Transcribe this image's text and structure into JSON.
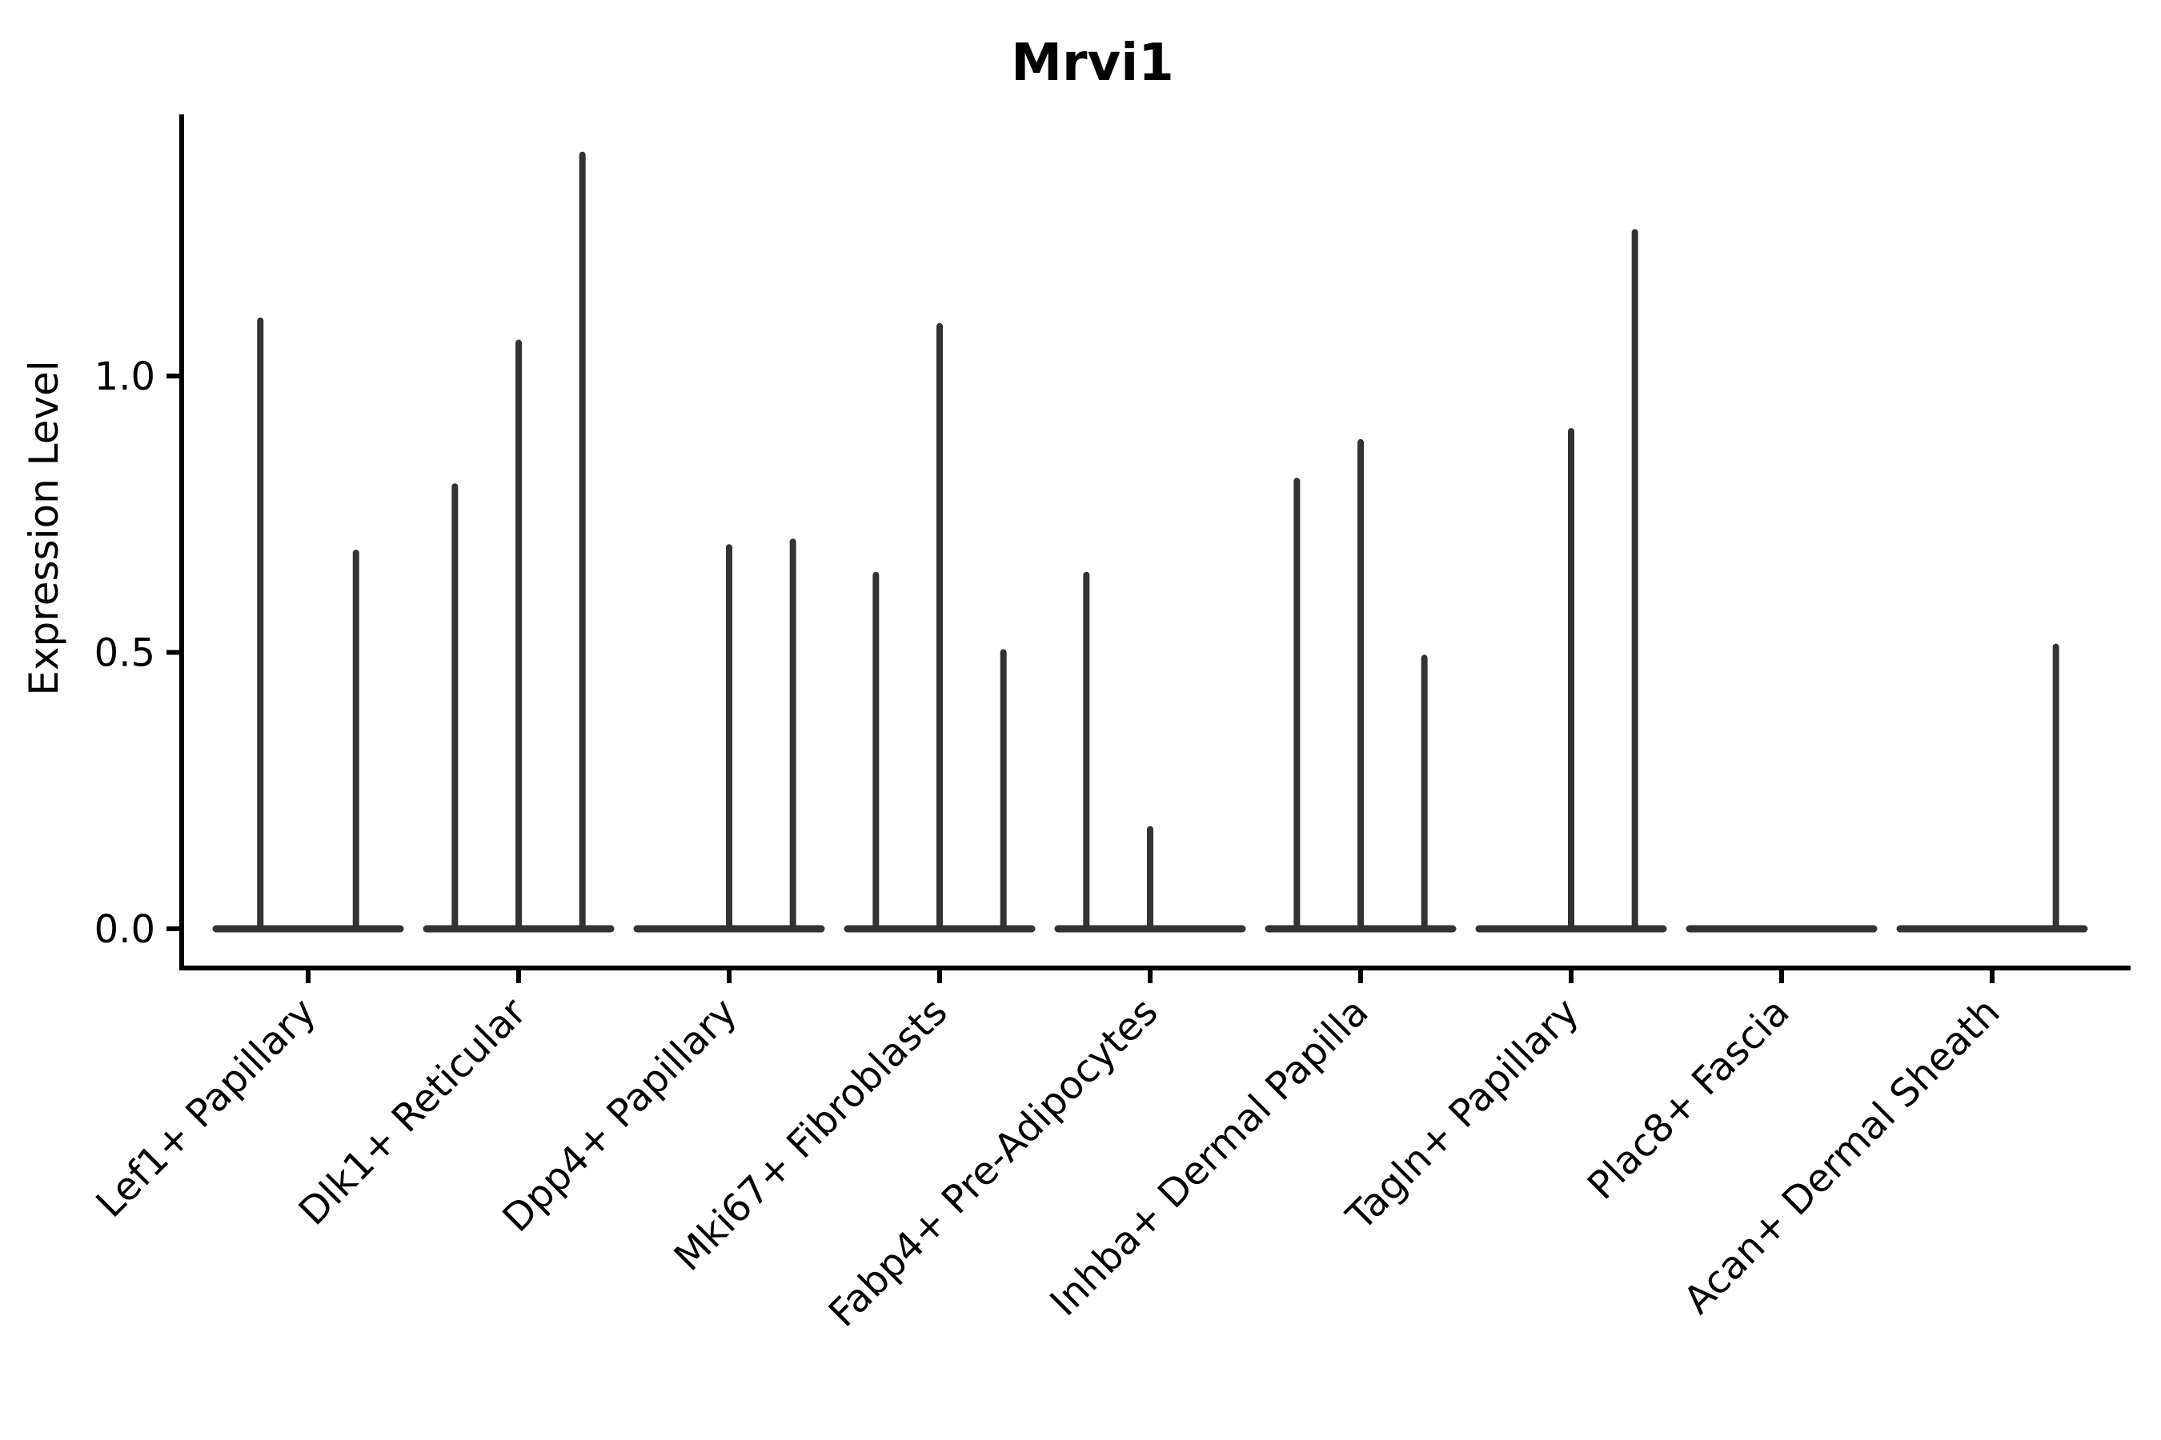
{
  "chart_data": {
    "type": "violin",
    "title": "Mrvi1",
    "xlabel": "",
    "ylabel": "Expression Level",
    "ylim": [
      -0.07,
      1.47
    ],
    "grid": false,
    "legend_position": "none",
    "ytick_labels": [
      "0.0",
      "0.5",
      "1.0"
    ],
    "ytick_values": [
      0.0,
      0.5,
      1.0
    ],
    "categories": [
      {
        "label": "Lef1+ Papillary",
        "violins": [
          1.1,
          0.68
        ]
      },
      {
        "label": "Dlk1+ Reticular",
        "violins": [
          0.8,
          1.06,
          1.4
        ]
      },
      {
        "label": "Dpp4+ Papillary",
        "violins": [
          0.0,
          0.69,
          0.7
        ]
      },
      {
        "label": "Mki67+ Fibroblasts",
        "violins": [
          0.64,
          1.09,
          0.5
        ]
      },
      {
        "label": "Fabp4+ Pre-Adipocytes",
        "violins": [
          0.64,
          0.18,
          0.0
        ]
      },
      {
        "label": "Inhba+ Dermal Papilla",
        "violins": [
          0.81,
          0.88,
          0.49
        ]
      },
      {
        "label": "Tagln+ Papillary",
        "violins": [
          0.0,
          0.9,
          1.26
        ]
      },
      {
        "label": "Plac8+ Fascia",
        "violins": [
          0.0,
          0.0,
          0.0
        ]
      },
      {
        "label": "Acan+ Dermal Sheath",
        "violins": [
          0.0,
          0.0,
          0.51
        ]
      }
    ],
    "colors": {
      "violin": "#333333",
      "axis": "#000000",
      "text": "#000000",
      "background": "#ffffff"
    }
  }
}
